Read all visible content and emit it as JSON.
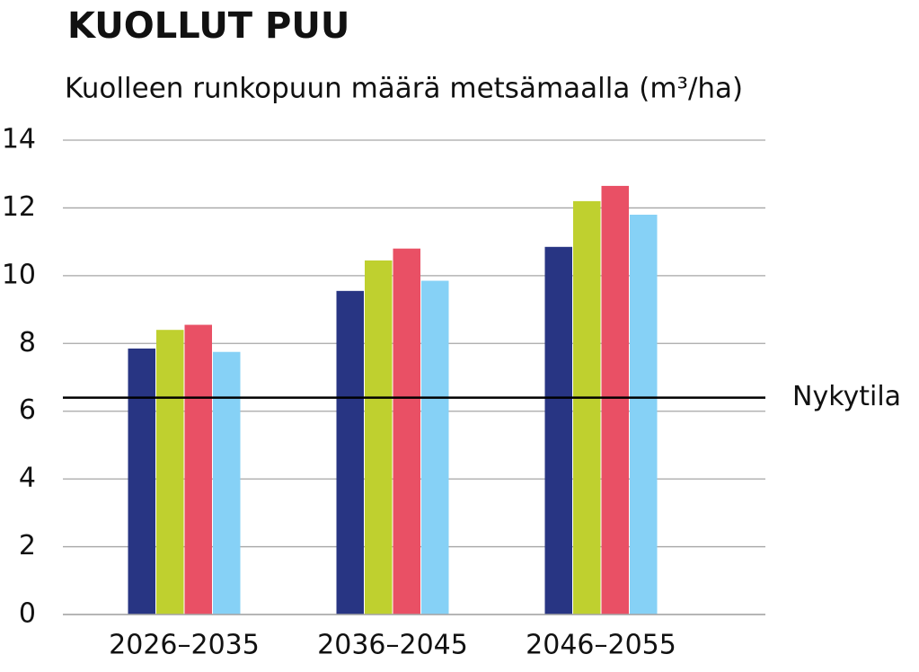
{
  "chart_data": {
    "type": "bar",
    "title": "KUOLLUT PUU",
    "subtitle": "Kuolleen runkopuun määrä metsämaalla (m³/ha)",
    "categories": [
      "2026–2035",
      "2036–2045",
      "2046–2055"
    ],
    "series": [
      {
        "color": "#283583",
        "values": [
          7.85,
          9.55,
          10.85
        ]
      },
      {
        "color": "#bfd02f",
        "values": [
          8.4,
          10.45,
          12.2
        ]
      },
      {
        "color": "#e95065",
        "values": [
          8.55,
          10.8,
          12.65
        ]
      },
      {
        "color": "#86d1f6",
        "values": [
          7.75,
          9.85,
          11.8
        ]
      }
    ],
    "reference_line": {
      "label": "Nykytila",
      "value": 6.4,
      "color": "#000000"
    },
    "ylim": [
      0,
      14
    ],
    "yticks": [
      0,
      2,
      4,
      6,
      8,
      10,
      12,
      14
    ],
    "grid": true
  }
}
